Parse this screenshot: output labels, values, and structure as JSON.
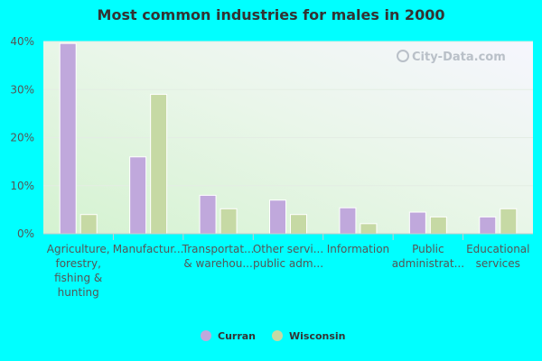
{
  "chart_data": {
    "type": "bar",
    "title": "Most common industries for males in 2000",
    "categories": [
      [
        "Agriculture,",
        "forestry,",
        "fishing &",
        "hunting"
      ],
      [
        "Manufactur..."
      ],
      [
        "Transportat...",
        "& warehou..."
      ],
      [
        "Other servi...",
        "public adm..."
      ],
      [
        "Information"
      ],
      [
        "Public",
        "administrat..."
      ],
      [
        "Educational",
        "services"
      ]
    ],
    "series": [
      {
        "name": "Curran",
        "color": "#C0A8DC",
        "values": [
          39.6,
          16.0,
          8.0,
          7.0,
          5.4,
          4.5,
          3.5
        ]
      },
      {
        "name": "Wisconsin",
        "color": "#C6D9A4",
        "values": [
          4.0,
          29.0,
          5.2,
          4.0,
          2.1,
          3.5,
          5.2
        ]
      }
    ],
    "yticks": [
      "0%",
      "10%",
      "20%",
      "30%",
      "40%"
    ],
    "ylim": [
      0,
      40
    ],
    "grid": true,
    "legend_position": "bottom"
  },
  "watermark": "City-Data.com"
}
